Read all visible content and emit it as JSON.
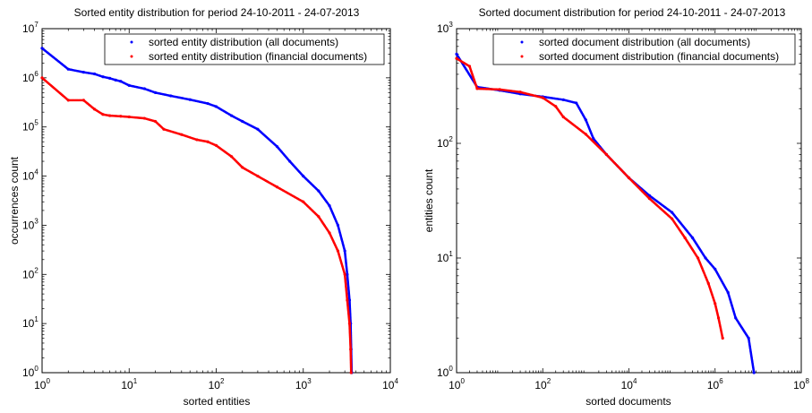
{
  "chart_data": [
    {
      "type": "scatter",
      "title": "Sorted entity distribution for period 24-10-2011 - 24-07-2013",
      "xlabel": "sorted entities",
      "ylabel": "occurrences count",
      "xscale": "log",
      "yscale": "log",
      "xlim": [
        1,
        10000
      ],
      "ylim": [
        1,
        10000000
      ],
      "xticks": [
        {
          "v": 1,
          "b": "10",
          "e": "0"
        },
        {
          "v": 10,
          "b": "10",
          "e": "1"
        },
        {
          "v": 100,
          "b": "10",
          "e": "2"
        },
        {
          "v": 1000,
          "b": "10",
          "e": "3"
        },
        {
          "v": 10000,
          "b": "10",
          "e": "4"
        }
      ],
      "yticks": [
        {
          "v": 1,
          "b": "10",
          "e": "0"
        },
        {
          "v": 10,
          "b": "10",
          "e": "1"
        },
        {
          "v": 100,
          "b": "10",
          "e": "2"
        },
        {
          "v": 1000,
          "b": "10",
          "e": "3"
        },
        {
          "v": 10000,
          "b": "10",
          "e": "4"
        },
        {
          "v": 100000,
          "b": "10",
          "e": "5"
        },
        {
          "v": 1000000,
          "b": "10",
          "e": "6"
        },
        {
          "v": 10000000,
          "b": "10",
          "e": "7"
        }
      ],
      "legend_position": "top-right",
      "grid": false,
      "series": [
        {
          "name": "sorted entity distribution (all documents)",
          "color": "#0000ff",
          "points": [
            [
              1,
              4000000
            ],
            [
              2,
              1500000
            ],
            [
              3,
              1300000
            ],
            [
              4,
              1200000
            ],
            [
              5,
              1050000
            ],
            [
              6,
              980000
            ],
            [
              7,
              900000
            ],
            [
              8,
              850000
            ],
            [
              10,
              700000
            ],
            [
              15,
              600000
            ],
            [
              20,
              500000
            ],
            [
              30,
              430000
            ],
            [
              50,
              360000
            ],
            [
              80,
              300000
            ],
            [
              100,
              260000
            ],
            [
              150,
              170000
            ],
            [
              200,
              130000
            ],
            [
              300,
              90000
            ],
            [
              500,
              40000
            ],
            [
              700,
              20000
            ],
            [
              1000,
              10000
            ],
            [
              1500,
              5000
            ],
            [
              2000,
              2500
            ],
            [
              2500,
              1000
            ],
            [
              3000,
              300
            ],
            [
              3200,
              100
            ],
            [
              3400,
              30
            ],
            [
              3500,
              10
            ],
            [
              3550,
              3
            ],
            [
              3600,
              1
            ]
          ]
        },
        {
          "name": "sorted entity distribution (financial documents)",
          "color": "#ff0000",
          "points": [
            [
              1,
              1000000
            ],
            [
              2,
              350000
            ],
            [
              3,
              350000
            ],
            [
              4,
              230000
            ],
            [
              5,
              180000
            ],
            [
              6,
              170000
            ],
            [
              8,
              165000
            ],
            [
              10,
              160000
            ],
            [
              15,
              150000
            ],
            [
              20,
              130000
            ],
            [
              25,
              90000
            ],
            [
              40,
              70000
            ],
            [
              60,
              55000
            ],
            [
              80,
              50000
            ],
            [
              100,
              42000
            ],
            [
              150,
              25000
            ],
            [
              200,
              15000
            ],
            [
              300,
              10000
            ],
            [
              500,
              6000
            ],
            [
              1000,
              3000
            ],
            [
              1500,
              1500
            ],
            [
              2000,
              700
            ],
            [
              2500,
              300
            ],
            [
              3000,
              100
            ],
            [
              3200,
              30
            ],
            [
              3400,
              10
            ],
            [
              3500,
              3
            ],
            [
              3550,
              1
            ]
          ]
        }
      ]
    },
    {
      "type": "scatter",
      "title": "Sorted document distribution for period 24-10-2011 - 24-07-2013",
      "xlabel": "sorted documents",
      "ylabel": "entities count",
      "xscale": "log",
      "yscale": "log",
      "xlim": [
        1,
        100000000
      ],
      "ylim": [
        1,
        1000
      ],
      "xticks": [
        {
          "v": 1,
          "b": "10",
          "e": "0"
        },
        {
          "v": 100,
          "b": "10",
          "e": "2"
        },
        {
          "v": 10000,
          "b": "10",
          "e": "4"
        },
        {
          "v": 1000000,
          "b": "10",
          "e": "6"
        },
        {
          "v": 100000000,
          "b": "10",
          "e": "8"
        }
      ],
      "yticks": [
        {
          "v": 1,
          "b": "10",
          "e": "0"
        },
        {
          "v": 10,
          "b": "10",
          "e": "1"
        },
        {
          "v": 100,
          "b": "10",
          "e": "2"
        },
        {
          "v": 1000,
          "b": "10",
          "e": "3"
        }
      ],
      "legend_position": "top-right",
      "grid": false,
      "series": [
        {
          "name": "sorted document distribution (all documents)",
          "color": "#0000ff",
          "points": [
            [
              1,
              600
            ],
            [
              3,
              310
            ],
            [
              10,
              290
            ],
            [
              30,
              270
            ],
            [
              100,
              255
            ],
            [
              300,
              240
            ],
            [
              600,
              225
            ],
            [
              1000,
              160
            ],
            [
              1500,
              110
            ],
            [
              3000,
              80
            ],
            [
              10000,
              50
            ],
            [
              30000,
              35
            ],
            [
              100000,
              25
            ],
            [
              300000,
              15
            ],
            [
              600000,
              10
            ],
            [
              1000000,
              8
            ],
            [
              2000000,
              5
            ],
            [
              3000000,
              3
            ],
            [
              6000000,
              2
            ],
            [
              8000000,
              1
            ]
          ]
        },
        {
          "name": "sorted document distribution (financial documents)",
          "color": "#ff0000",
          "points": [
            [
              1,
              550
            ],
            [
              2,
              470
            ],
            [
              3,
              300
            ],
            [
              10,
              295
            ],
            [
              30,
              280
            ],
            [
              100,
              250
            ],
            [
              200,
              210
            ],
            [
              300,
              170
            ],
            [
              1000,
              120
            ],
            [
              3000,
              80
            ],
            [
              10000,
              50
            ],
            [
              30000,
              33
            ],
            [
              100000,
              22
            ],
            [
              200000,
              15
            ],
            [
              400000,
              10
            ],
            [
              700000,
              6
            ],
            [
              1000000,
              4
            ],
            [
              1200000,
              3
            ],
            [
              1500000,
              2
            ]
          ]
        }
      ]
    }
  ]
}
